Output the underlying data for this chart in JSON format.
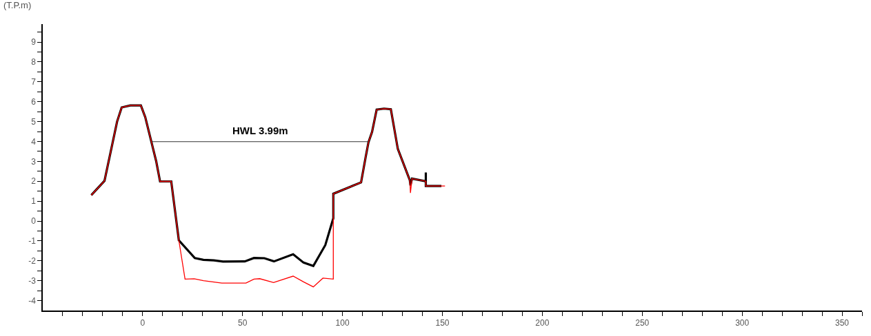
{
  "chart_data": {
    "type": "line",
    "ylabel": "(T.P.m)",
    "series": [
      {
        "color": "#ff0000",
        "x": [
          -25.7,
          -19.1,
          -12.8,
          -10.5,
          -6.2,
          -0.9,
          1.3,
          6.8,
          8.7,
          14.3,
          18.1,
          21.2,
          25.8,
          30.4,
          39.6,
          51.7,
          55.7,
          58.6,
          65.5,
          75.3,
          80.5,
          85.4,
          90.2,
          95.4,
          95.4,
          109.3,
          111.6,
          113,
          114.8,
          117.1,
          120.8,
          124.2,
          127.7,
          133.7,
          134,
          134.8,
          141.7,
          141.7,
          151.3
        ],
        "values": [
          1.3,
          2.02,
          5.0,
          5.71,
          5.81,
          5.81,
          5.22,
          2.99,
          1.99,
          1.99,
          -0.97,
          -2.92,
          -2.9,
          -3.0,
          -3.12,
          -3.12,
          -2.92,
          -2.9,
          -3.09,
          -2.77,
          -3.06,
          -3.31,
          -2.87,
          -2.92,
          1.37,
          1.94,
          3.22,
          3.96,
          4.48,
          5.6,
          5.65,
          5.62,
          3.62,
          2.05,
          1.41,
          2.13,
          2.0,
          1.76,
          1.76
        ]
      },
      {
        "color": "#000000",
        "x": [
          -25.7,
          -19.1,
          -12.8,
          -10.5,
          -6.2,
          -0.9,
          1.3,
          6.8,
          8.7,
          14.3,
          18.1,
          26.1,
          30.4,
          35.6,
          40.2,
          51.1,
          55.7,
          60.9,
          65.7,
          75.3,
          80.5,
          85.4,
          91.4,
          95.4,
          95.4,
          109.3,
          111.6,
          113,
          114.8,
          117.1,
          120.8,
          124.2,
          127.7,
          133.7,
          134,
          134.8,
          141.7,
          141.7,
          141.7,
          149.5
        ],
        "values": [
          1.3,
          2.02,
          5.0,
          5.71,
          5.81,
          5.81,
          5.22,
          2.99,
          1.99,
          1.99,
          -0.97,
          -1.86,
          -1.95,
          -1.98,
          -2.04,
          -2.03,
          -1.86,
          -1.87,
          -2.03,
          -1.67,
          -2.09,
          -2.26,
          -1.21,
          0.14,
          1.37,
          1.94,
          3.22,
          3.96,
          4.48,
          5.6,
          5.65,
          5.62,
          3.62,
          2.05,
          1.79,
          2.13,
          2.0,
          2.44,
          1.76,
          1.76
        ]
      },
      {
        "name": "HWL 3.99m",
        "color": "#333333",
        "x": [
          4.8,
          113
        ],
        "values": [
          3.99,
          3.99
        ]
      }
    ],
    "xlim": [
      -50,
      360
    ],
    "ylim": [
      -4.5,
      9.9
    ],
    "xticks": [
      {
        "value": -40,
        "label": null
      },
      {
        "value": -30,
        "label": null
      },
      {
        "value": -20,
        "label": null
      },
      {
        "value": -10,
        "label": null
      },
      0,
      {
        "value": 10,
        "label": null
      },
      {
        "value": 20,
        "label": null
      },
      {
        "value": 30,
        "label": null
      },
      {
        "value": 40,
        "label": null
      },
      50,
      {
        "value": 60,
        "label": null
      },
      {
        "value": 70,
        "label": null
      },
      {
        "value": 80,
        "label": null
      },
      {
        "value": 90,
        "label": null
      },
      100,
      {
        "value": 110,
        "label": null
      },
      {
        "value": 120,
        "label": null
      },
      {
        "value": 130,
        "label": null
      },
      {
        "value": 140,
        "label": null
      },
      150,
      {
        "value": 160,
        "label": null
      },
      {
        "value": 170,
        "label": null
      },
      {
        "value": 180,
        "label": null
      },
      {
        "value": 190,
        "label": null
      },
      200,
      {
        "value": 210,
        "label": null
      },
      {
        "value": 220,
        "label": null
      },
      {
        "value": 230,
        "label": null
      },
      {
        "value": 240,
        "label": null
      },
      250,
      {
        "value": 260,
        "label": null
      },
      {
        "value": 270,
        "label": null
      },
      {
        "value": 280,
        "label": null
      },
      {
        "value": 290,
        "label": null
      },
      300,
      {
        "value": 310,
        "label": null
      },
      {
        "value": 320,
        "label": null
      },
      {
        "value": 330,
        "label": null
      },
      {
        "value": 340,
        "label": null
      },
      350,
      {
        "value": 360,
        "label": null
      }
    ],
    "yticks": [
      -4,
      {
        "value": -3.5,
        "label": null
      },
      -3,
      {
        "value": -2.5,
        "label": null
      },
      -2,
      {
        "value": -1.5,
        "label": null
      },
      -1,
      {
        "value": -0.5,
        "label": null
      },
      0,
      {
        "value": 0.5,
        "label": null
      },
      1,
      {
        "value": 1.5,
        "label": null
      },
      2,
      {
        "value": 2.5,
        "label": null
      },
      3,
      {
        "value": 3.5,
        "label": null
      },
      4,
      {
        "value": 4.5,
        "label": null
      },
      5,
      {
        "value": 5.5,
        "label": null
      },
      6,
      {
        "value": 6.5,
        "label": null
      },
      7,
      {
        "value": 7.5,
        "label": null
      },
      8,
      {
        "value": 8.5,
        "label": null
      },
      9,
      {
        "value": 9.5,
        "label": null
      }
    ],
    "legend": false,
    "marker": "none",
    "line_style": "solid"
  }
}
